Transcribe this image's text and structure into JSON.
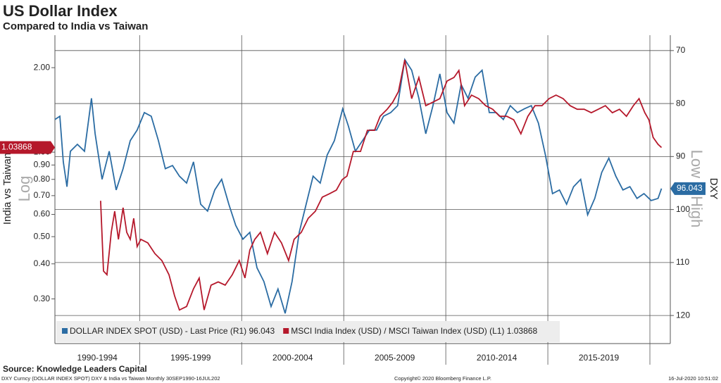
{
  "chart_data": {
    "type": "line",
    "title": "US Dollar Index",
    "subtitle": "Compared to India vs Taiwan",
    "y_label": "India vs Taiwan",
    "y_scale_label": "Log",
    "y2_label": "DXY",
    "y2_scale_label": "Low = High",
    "source": "Source: Knowledge Leaders Capital",
    "footer_left": "DXY Curncy (DOLLAR INDEX SPOT) DXY & India vs Taiwan  Monthly 30SEP1990-16JUL202",
    "footer_center": "Copyright© 2020 Bloomberg Finance L.P.",
    "footer_right": "16-Jul-2020 10:51:02",
    "categories": [
      "1990-1994",
      "1995-1999",
      "2000-2004",
      "2005-2009",
      "2010-2014",
      "2015-2019"
    ],
    "xlim": [
      1990.85,
      2021.0
    ],
    "xticks": [
      1995,
      2000,
      2005,
      2010,
      2015,
      2020
    ],
    "ylim": [
      0.208,
      2.61
    ],
    "y_log": true,
    "yticks": [
      {
        "value": 0.3,
        "label": "0.30"
      },
      {
        "value": 0.4,
        "label": "0.40"
      },
      {
        "value": 0.5,
        "label": "0.50"
      },
      {
        "value": 0.6,
        "label": "0.60"
      },
      {
        "value": 0.7,
        "label": "0.70"
      },
      {
        "value": 0.8,
        "label": "0.80"
      },
      {
        "value": 0.9,
        "label": "0.90"
      },
      {
        "value": 1,
        "label": "1.00"
      },
      {
        "value": 2,
        "label": "2.00"
      }
    ],
    "y2lim": [
      67.1,
      125.3
    ],
    "y2_reversed": true,
    "y2ticks": [
      70,
      80,
      90,
      100,
      110,
      120
    ],
    "grid": true,
    "legend": "bottom-left",
    "series": [
      {
        "name": "DOLLAR INDEX SPOT (USD) - Last Price (R1) 96.043",
        "color": "#2b6ca3",
        "axis": "y2",
        "x": [
          1990.85,
          1991.09,
          1991.26,
          1991.44,
          1991.61,
          1991.95,
          1992.3,
          1992.64,
          1992.82,
          1993.16,
          1993.51,
          1993.85,
          1994.19,
          1994.54,
          1994.88,
          1995.23,
          1995.57,
          1995.92,
          1996.26,
          1996.61,
          1996.95,
          1997.3,
          1997.64,
          1997.99,
          1998.33,
          1998.68,
          1999.02,
          1999.37,
          1999.71,
          2000.06,
          2000.4,
          2000.75,
          2001.09,
          2001.44,
          2001.78,
          2002.13,
          2002.47,
          2002.82,
          2003.16,
          2003.5,
          2003.85,
          2004.19,
          2004.54,
          2004.95,
          2005.23,
          2005.57,
          2005.92,
          2006.26,
          2006.61,
          2006.95,
          2007.3,
          2007.64,
          2007.99,
          2008.33,
          2008.68,
          2009.02,
          2009.37,
          2009.71,
          2010.06,
          2010.4,
          2010.75,
          2011.09,
          2011.44,
          2011.78,
          2012.13,
          2012.47,
          2012.82,
          2013.16,
          2013.51,
          2013.85,
          2014.19,
          2014.54,
          2014.88,
          2015.23,
          2015.57,
          2015.92,
          2016.26,
          2016.61,
          2016.95,
          2017.3,
          2017.64,
          2017.99,
          2018.33,
          2018.68,
          2019.02,
          2019.37,
          2019.71,
          2020.06,
          2020.4,
          2020.57
        ],
        "values": [
          83,
          82.4,
          91,
          95.7,
          89,
          87.7,
          89,
          79,
          85.7,
          94.3,
          89,
          96.3,
          92.3,
          87,
          85,
          81.7,
          82.4,
          87,
          92.3,
          91.7,
          93.7,
          95,
          91,
          99,
          100.3,
          96.3,
          94.3,
          99,
          103,
          105.6,
          104.3,
          111,
          113.6,
          118.3,
          115,
          119.6,
          113.6,
          104.3,
          99,
          93.7,
          95,
          89.7,
          87,
          81,
          84.3,
          89,
          87,
          85,
          85,
          82.4,
          81.7,
          80.4,
          71.7,
          73.7,
          79,
          85.7,
          80.4,
          74.4,
          81.7,
          83.7,
          76.4,
          79,
          75,
          73.7,
          81.7,
          81.7,
          83,
          80.4,
          81.7,
          81,
          80.4,
          83.7,
          89.7,
          97,
          96.3,
          99,
          95.7,
          94.3,
          101,
          97.9,
          93,
          90.3,
          93.7,
          96.3,
          95.7,
          97.9,
          97,
          98.3,
          97.9,
          96.043
        ]
      },
      {
        "name": "MSCI India Index (USD) / MSCI Taiwan Index (USD) (L1) 1.03868",
        "color": "#b5182b",
        "axis": "y",
        "x": [
          1993.09,
          1993.23,
          1993.4,
          1993.61,
          1993.78,
          1993.96,
          1994.19,
          1994.37,
          1994.54,
          1994.71,
          1994.88,
          1995.06,
          1995.4,
          1995.75,
          1996.09,
          1996.44,
          1996.71,
          1996.95,
          1997.3,
          1997.64,
          1997.92,
          1998.16,
          1998.5,
          1998.85,
          1999.19,
          1999.54,
          1999.88,
          2000.16,
          2000.4,
          2000.64,
          2000.92,
          2001.26,
          2001.61,
          2001.95,
          2002.3,
          2002.57,
          2002.92,
          2003.26,
          2003.61,
          2003.95,
          2004.3,
          2004.64,
          2004.92,
          2005.16,
          2005.47,
          2005.82,
          2006.16,
          2006.51,
          2006.78,
          2007.13,
          2007.4,
          2007.68,
          2007.99,
          2008.33,
          2008.68,
          2009.02,
          2009.37,
          2009.71,
          2010.06,
          2010.4,
          2010.64,
          2010.92,
          2011.26,
          2011.61,
          2011.95,
          2012.3,
          2012.64,
          2012.99,
          2013.33,
          2013.68,
          2014.02,
          2014.37,
          2014.71,
          2015.06,
          2015.4,
          2015.75,
          2016.09,
          2016.44,
          2016.78,
          2017.13,
          2017.47,
          2017.82,
          2018.16,
          2018.51,
          2018.85,
          2019.19,
          2019.47,
          2019.75,
          2019.95,
          2020.16,
          2020.4,
          2020.57
        ],
        "values": [
          0.671,
          0.377,
          0.366,
          0.518,
          0.616,
          0.489,
          0.634,
          0.518,
          0.489,
          0.581,
          0.461,
          0.489,
          0.475,
          0.435,
          0.411,
          0.366,
          0.308,
          0.274,
          0.282,
          0.326,
          0.356,
          0.274,
          0.336,
          0.345,
          0.336,
          0.366,
          0.411,
          0.356,
          0.448,
          0.489,
          0.518,
          0.435,
          0.518,
          0.475,
          0.411,
          0.489,
          0.518,
          0.581,
          0.616,
          0.691,
          0.711,
          0.732,
          0.798,
          0.822,
          1.006,
          1.006,
          1.196,
          1.196,
          1.342,
          1.422,
          1.507,
          1.643,
          2.131,
          1.551,
          1.845,
          1.464,
          1.507,
          1.551,
          1.792,
          1.845,
          1.954,
          1.464,
          1.597,
          1.551,
          1.464,
          1.422,
          1.342,
          1.342,
          1.304,
          1.162,
          1.342,
          1.464,
          1.464,
          1.551,
          1.597,
          1.551,
          1.464,
          1.422,
          1.422,
          1.382,
          1.422,
          1.464,
          1.382,
          1.422,
          1.342,
          1.464,
          1.551,
          1.382,
          1.304,
          1.129,
          1.066,
          1.03868
        ]
      }
    ]
  }
}
